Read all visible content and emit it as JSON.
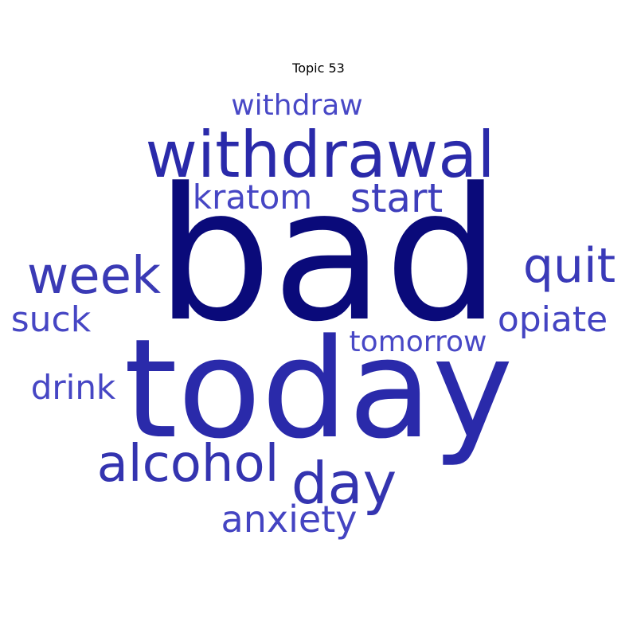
{
  "chart_data": {
    "type": "wordcloud",
    "title": "Topic 53",
    "words": [
      {
        "text": "bad",
        "color": "#0a0a7a"
      },
      {
        "text": "today",
        "color": "#2a2aaa"
      },
      {
        "text": "withdrawal",
        "color": "#2a2aaa"
      },
      {
        "text": "week",
        "color": "#3a3ab5"
      },
      {
        "text": "alcohol",
        "color": "#3434b0"
      },
      {
        "text": "day",
        "color": "#3434b0"
      },
      {
        "text": "quit",
        "color": "#3a3ab8"
      },
      {
        "text": "start",
        "color": "#3e3ebc"
      },
      {
        "text": "kratom",
        "color": "#4646c4"
      },
      {
        "text": "anxiety",
        "color": "#4444c2"
      },
      {
        "text": "opiate",
        "color": "#4444c2"
      },
      {
        "text": "drink",
        "color": "#4646c4"
      },
      {
        "text": "suck",
        "color": "#4646c4"
      },
      {
        "text": "tomorrow",
        "color": "#4848c6"
      },
      {
        "text": "withdraw",
        "color": "#4848c6"
      }
    ]
  }
}
